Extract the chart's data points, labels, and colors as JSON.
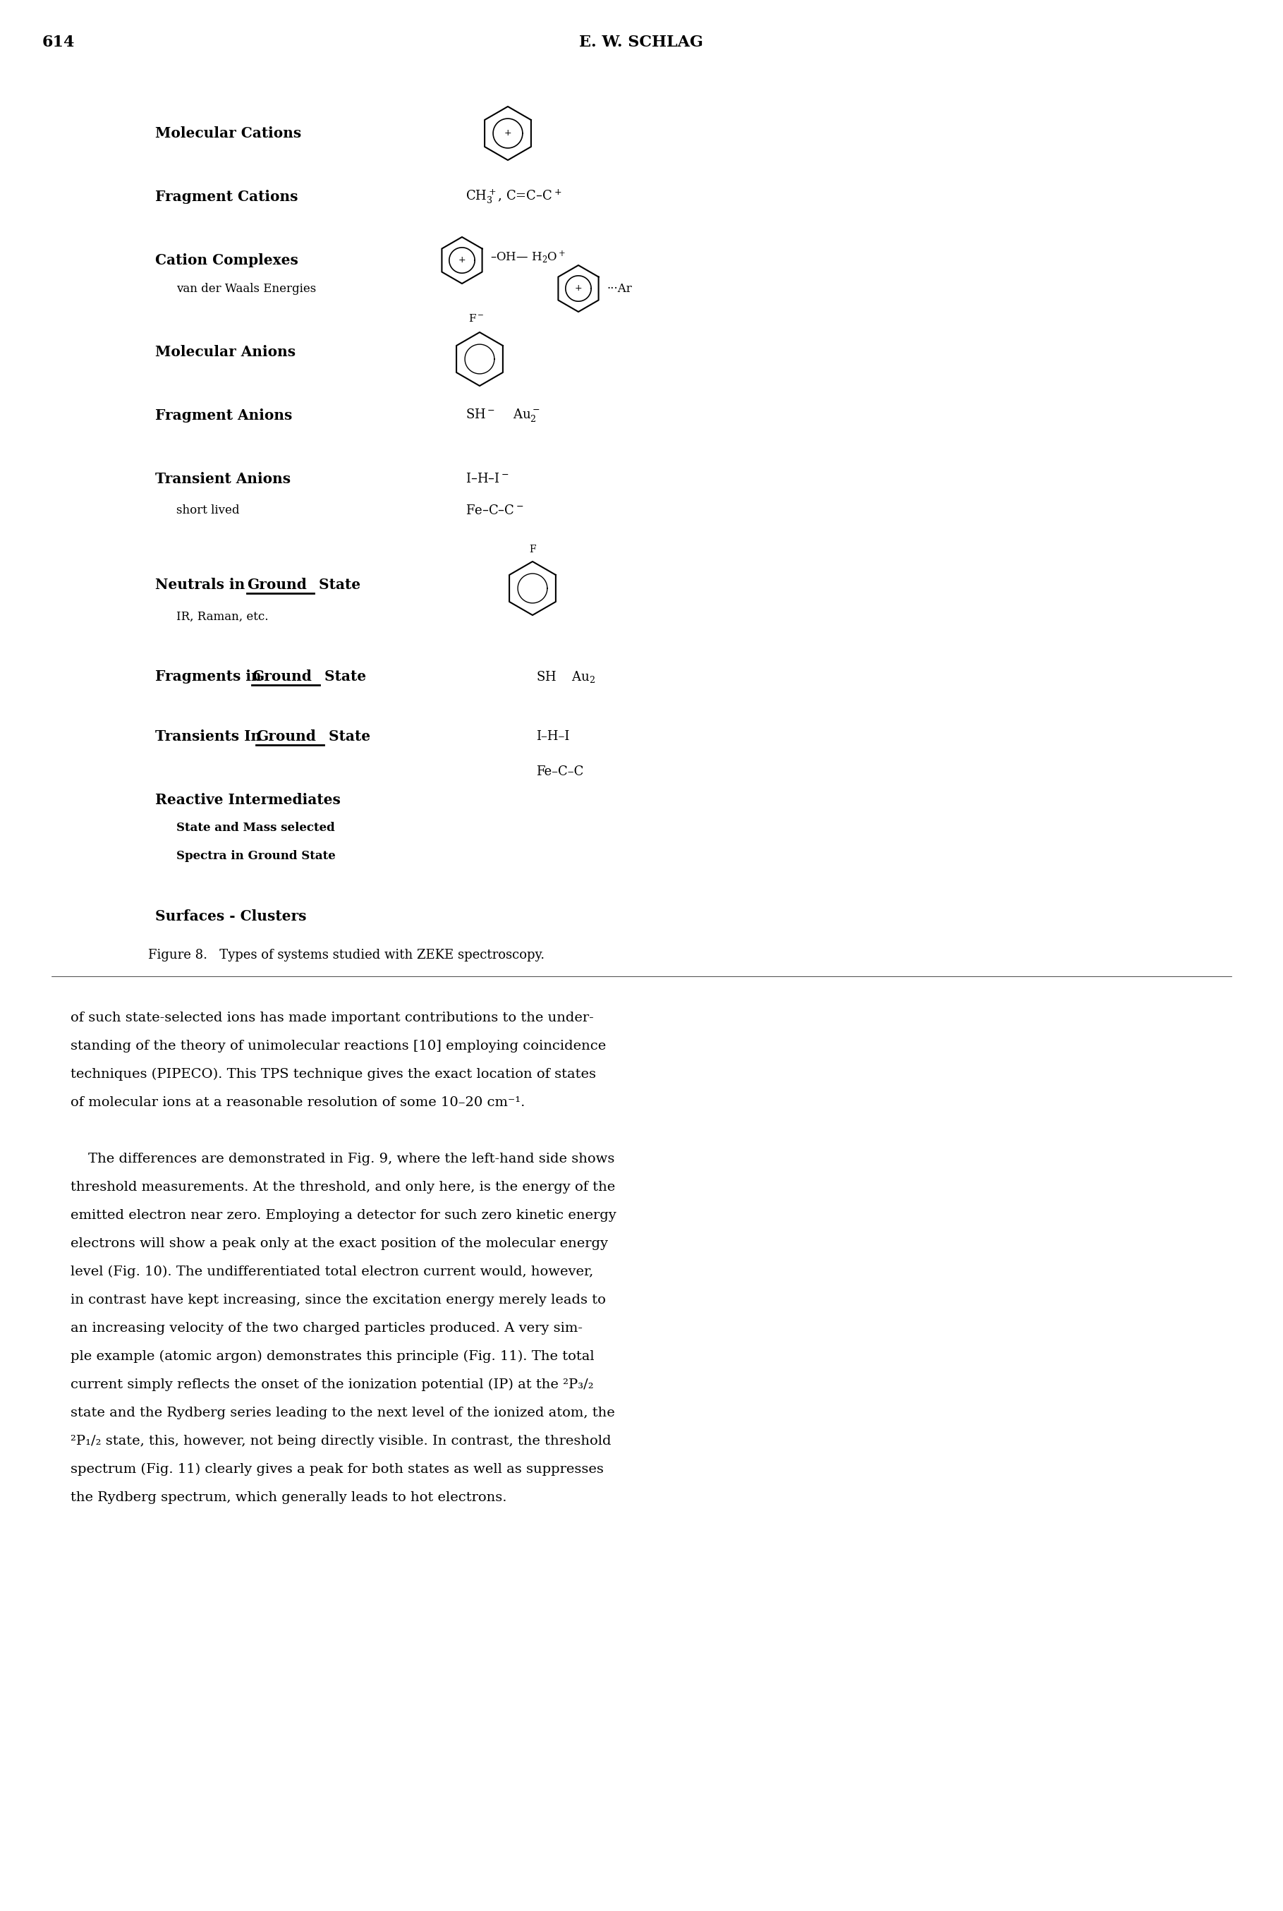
{
  "page_number": "614",
  "header": "E. W. SCHLAG",
  "figure_caption": "Figure 8.   Types of systems studied with ZEKE spectroscopy.",
  "figure_items": [
    {
      "label": "Molecular Cations",
      "bold": true,
      "indent": 0
    },
    {
      "label": "Fragment Cations",
      "bold": true,
      "indent": 0
    },
    {
      "label": "Cation Complexes",
      "bold": true,
      "indent": 0
    },
    {
      "label": "van der Waals Energies",
      "bold": false,
      "indent": 1
    },
    {
      "label": "Molecular Anions",
      "bold": true,
      "indent": 0
    },
    {
      "label": "Fragment Anions",
      "bold": true,
      "indent": 0
    },
    {
      "label": "Transient Anions",
      "bold": true,
      "indent": 0
    },
    {
      "label": "short lived",
      "bold": false,
      "indent": 1
    },
    {
      "label": "Neutrals in Ground State",
      "bold": true,
      "underline": "Ground",
      "indent": 0
    },
    {
      "label": "IR, Raman, etc.",
      "bold": false,
      "indent": 1
    },
    {
      "label": "Fragments in Ground State",
      "bold": true,
      "underline": "Ground",
      "indent": 0
    },
    {
      "label": "Transients in Ground State",
      "bold": true,
      "underline": "Ground",
      "indent": 0
    },
    {
      "label": "Reactive Intermediates",
      "bold": true,
      "indent": 0
    },
    {
      "label": "State and Mass selected",
      "bold": false,
      "indent": 1
    },
    {
      "label": "Spectra in Ground State",
      "bold": false,
      "indent": 1
    },
    {
      "label": "Surfaces - Clusters",
      "bold": true,
      "indent": 0
    }
  ],
  "body_text": [
    "of such state-selected ions has made important contributions to the under-",
    "standing of the theory of unimolecular reactions [10] employing coincidence",
    "techniques (PIPECO). This TPS technique gives the exact location of states",
    "of molecular ions at a reasonable resolution of some 10–20 cm⁻¹.",
    "",
    "    The differences are demonstrated in Fig. 9, where the left-hand side shows",
    "threshold measurements. At the threshold, and only here, is the energy of the",
    "emitted electron near zero. Employing a detector for such zero kinetic energy",
    "electrons will show a peak only at the exact position of the molecular energy",
    "level (Fig. 10). The undifferentiated total electron current would, however,",
    "in contrast have kept increasing, since the excitation energy merely leads to",
    "an increasing velocity of the two charged particles produced. A very sim-",
    "ple example (atomic argon) demonstrates this principle (Fig. 11). The total",
    "current simply reflects the onset of the ionization potential (IP) at the ²P₃/₂",
    "state and the Rydberg series leading to the next level of the ionized atom, the",
    "²P₁/₂ state, this, however, not being directly visible. In contrast, the threshold",
    "spectrum (Fig. 11) clearly gives a peak for both states as well as suppresses",
    "the Rydberg spectrum, which generally leads to hot electrons."
  ],
  "bg_color": "#ffffff",
  "text_color": "#000000"
}
